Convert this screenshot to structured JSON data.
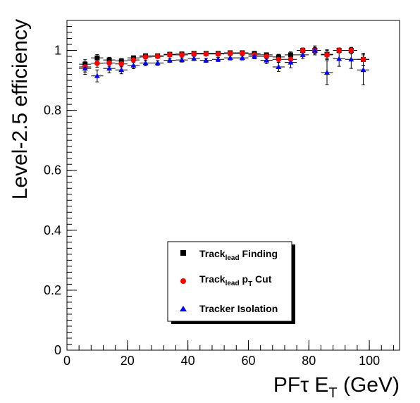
{
  "chart_data": {
    "type": "scatter",
    "title": "",
    "ylabel": "Level-2.5 efficiency",
    "xlabel": {
      "pre": "PF",
      "tau": "τ",
      "mid": " E",
      "sub": "T",
      "post": " (GeV)"
    },
    "xlim": [
      0,
      110
    ],
    "ylim": [
      0,
      1.1
    ],
    "x_ticks": [
      0,
      20,
      40,
      60,
      80,
      100
    ],
    "y_ticks": [
      0,
      0.2,
      0.4,
      0.6,
      0.8,
      1
    ],
    "x_tick_labels": [
      "0",
      "20",
      "40",
      "60",
      "80",
      "100"
    ],
    "y_tick_labels": [
      "0",
      "0.2",
      "0.4",
      "0.6",
      "0.8",
      "1"
    ],
    "x_minor_step": 4,
    "y_minor_step": 0.02,
    "grid": false,
    "legend_position": "lower-center",
    "series": [
      {
        "key": "finding",
        "color": "#000000",
        "marker": "square",
        "legend": {
          "pre": "Track",
          "sub": "lead",
          "post": " Finding"
        },
        "x": [
          6,
          10,
          14,
          18,
          22,
          26,
          30,
          34,
          38,
          42,
          46,
          50,
          54,
          58,
          62,
          66,
          70,
          74,
          78,
          82,
          86,
          90,
          94,
          98
        ],
        "y": [
          0.954,
          0.975,
          0.968,
          0.965,
          0.975,
          0.982,
          0.982,
          0.987,
          0.988,
          0.99,
          0.99,
          0.99,
          0.992,
          0.992,
          0.99,
          0.985,
          0.978,
          0.985,
          1.0,
          1.0,
          0.987,
          1.0,
          1.0,
          0.97
        ],
        "yerr": [
          0.015,
          0.011,
          0.009,
          0.008,
          0.007,
          0.006,
          0.006,
          0.005,
          0.005,
          0.005,
          0.005,
          0.005,
          0.005,
          0.005,
          0.006,
          0.007,
          0.009,
          0.01,
          0.008,
          0.01,
          0.015,
          0.008,
          0.01,
          0.02
        ]
      },
      {
        "key": "ptcut",
        "color": "#ff0000",
        "marker": "circle",
        "legend": {
          "pre": "Track",
          "sub": "lead",
          "post": " p",
          "sub2": "T",
          "post2": " Cut"
        },
        "x": [
          6,
          10,
          14,
          18,
          22,
          26,
          30,
          34,
          38,
          42,
          46,
          50,
          54,
          58,
          62,
          66,
          70,
          74,
          78,
          82,
          86,
          90,
          94,
          98
        ],
        "y": [
          0.945,
          0.957,
          0.958,
          0.955,
          0.968,
          0.978,
          0.98,
          0.985,
          0.985,
          0.988,
          0.988,
          0.988,
          0.99,
          0.99,
          0.985,
          0.98,
          0.97,
          0.97,
          1.0,
          1.0,
          0.985,
          1.0,
          1.0,
          0.97
        ],
        "yerr": [
          0.017,
          0.013,
          0.011,
          0.01,
          0.008,
          0.007,
          0.006,
          0.006,
          0.005,
          0.005,
          0.005,
          0.005,
          0.005,
          0.005,
          0.006,
          0.008,
          0.01,
          0.012,
          0.008,
          0.01,
          0.015,
          0.008,
          0.01,
          0.02
        ]
      },
      {
        "key": "isolation",
        "color": "#0000ff",
        "marker": "triangle",
        "legend": {
          "pre": "Tracker Isolation"
        },
        "x": [
          6,
          10,
          14,
          18,
          22,
          26,
          30,
          34,
          38,
          42,
          46,
          50,
          54,
          58,
          62,
          66,
          70,
          74,
          78,
          82,
          86,
          90,
          94,
          98
        ],
        "y": [
          0.94,
          0.915,
          0.94,
          0.935,
          0.95,
          0.958,
          0.958,
          0.967,
          0.968,
          0.973,
          0.967,
          0.97,
          0.975,
          0.975,
          0.98,
          0.967,
          0.945,
          0.96,
          0.985,
          1.0,
          0.926,
          0.972,
          0.97,
          0.935
        ],
        "yerr": [
          0.02,
          0.02,
          0.015,
          0.013,
          0.011,
          0.009,
          0.008,
          0.007,
          0.007,
          0.007,
          0.007,
          0.007,
          0.007,
          0.007,
          0.008,
          0.011,
          0.015,
          0.018,
          0.012,
          0.015,
          0.04,
          0.025,
          0.03,
          0.05
        ]
      }
    ]
  }
}
